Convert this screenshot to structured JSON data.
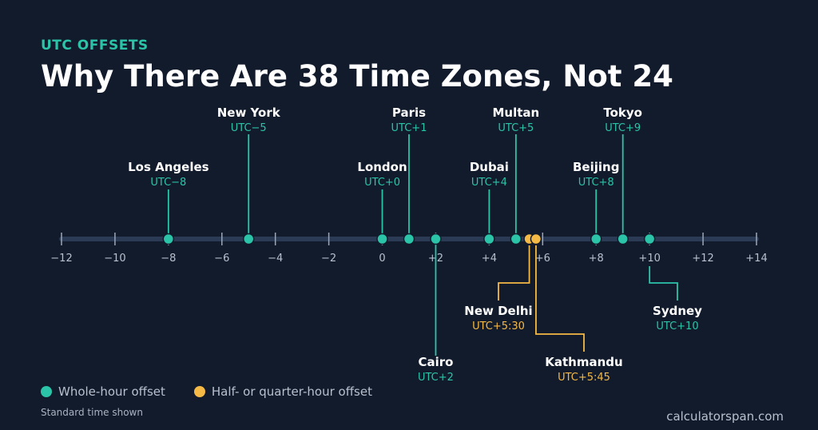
{
  "header": {
    "kicker": "UTC OFFSETS",
    "title": "Why There Are 38 Time Zones, Not 24"
  },
  "legend": {
    "whole_label": "Whole-hour offset",
    "fractional_label": "Half- or quarter-hour offset"
  },
  "footer": {
    "note": "Standard time shown",
    "source": "calculatorspan.com"
  },
  "colors": {
    "background": "#121b2c",
    "whole": "#2bc4a9",
    "fractional": "#f5b945",
    "axis": "#2b3a55",
    "tick": "#9aa6b8",
    "city": "#ffffff"
  },
  "chart_data": {
    "type": "scatter",
    "xlim": [
      -12,
      14
    ],
    "xticks": [
      -12,
      -10,
      -8,
      -6,
      -4,
      -2,
      0,
      2,
      4,
      6,
      8,
      10,
      12,
      14
    ],
    "xtick_labels": [
      "−12",
      "−10",
      "−8",
      "−6",
      "−4",
      "−2",
      "0",
      "+2",
      "+4",
      "+6",
      "+8",
      "+10",
      "+12",
      "+14"
    ],
    "grid": false,
    "legend_position": "bottom-left",
    "points": [
      {
        "city": "Los Angeles",
        "offset": -8,
        "label": "UTC−8",
        "kind": "whole",
        "side": "above"
      },
      {
        "city": "New York",
        "offset": -5,
        "label": "UTC−5",
        "kind": "whole",
        "side": "above"
      },
      {
        "city": "London",
        "offset": 0,
        "label": "UTC+0",
        "kind": "whole",
        "side": "above"
      },
      {
        "city": "Paris",
        "offset": 1,
        "label": "UTC+1",
        "kind": "whole",
        "side": "above"
      },
      {
        "city": "Cairo",
        "offset": 2,
        "label": "UTC+2",
        "kind": "whole",
        "side": "below"
      },
      {
        "city": "Dubai",
        "offset": 4,
        "label": "UTC+4",
        "kind": "whole",
        "side": "above"
      },
      {
        "city": "Multan",
        "offset": 5,
        "label": "UTC+5",
        "kind": "whole",
        "side": "above"
      },
      {
        "city": "New Delhi",
        "offset": 5.5,
        "label": "UTC+5:30",
        "kind": "fractional",
        "side": "below"
      },
      {
        "city": "Kathmandu",
        "offset": 5.75,
        "label": "UTC+5:45",
        "kind": "fractional",
        "side": "below"
      },
      {
        "city": "Beijing",
        "offset": 8,
        "label": "UTC+8",
        "kind": "whole",
        "side": "above"
      },
      {
        "city": "Tokyo",
        "offset": 9,
        "label": "UTC+9",
        "kind": "whole",
        "side": "above"
      },
      {
        "city": "Sydney",
        "offset": 10,
        "label": "UTC+10",
        "kind": "whole",
        "side": "below"
      }
    ]
  }
}
